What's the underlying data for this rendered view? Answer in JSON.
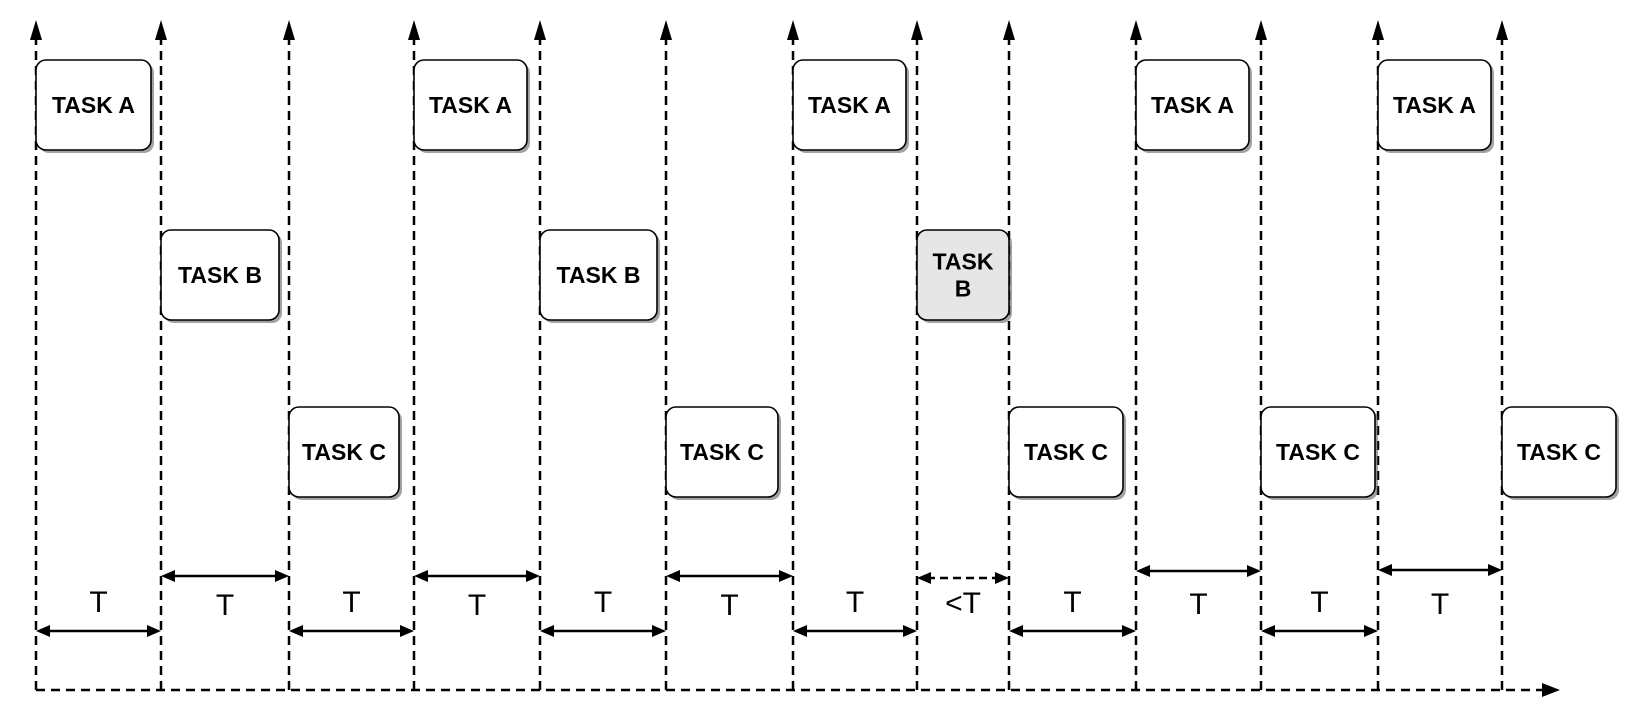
{
  "tasks": [
    {
      "label": "TASK A",
      "row": "A",
      "lines": [
        "TASK A"
      ]
    },
    {
      "label": "TASK B",
      "row": "B",
      "lines": [
        "TASK B"
      ]
    },
    {
      "label": "TASK C",
      "row": "C",
      "lines": [
        "TASK C"
      ]
    },
    {
      "label": "TASK A",
      "row": "A",
      "lines": [
        "TASK A"
      ]
    },
    {
      "label": "TASK B",
      "row": "B",
      "lines": [
        "TASK B"
      ]
    },
    {
      "label": "TASK C",
      "row": "C",
      "lines": [
        "TASK C"
      ]
    },
    {
      "label": "TASK A",
      "row": "A",
      "lines": [
        "TASK A"
      ]
    },
    {
      "label": "TASK B",
      "row": "B",
      "lines": [
        "TASK",
        "B"
      ],
      "highlighted": true
    },
    {
      "label": "TASK C",
      "row": "C",
      "lines": [
        "TASK C"
      ]
    },
    {
      "label": "TASK A",
      "row": "A",
      "lines": [
        "TASK A"
      ]
    },
    {
      "label": "TASK C",
      "row": "C",
      "lines": [
        "TASK C"
      ]
    },
    {
      "label": "TASK A",
      "row": "A",
      "lines": [
        "TASK A"
      ]
    },
    {
      "label": "TASK C",
      "row": "C",
      "lines": [
        "TASK C"
      ]
    }
  ],
  "intervals": [
    {
      "label": "T",
      "arrow_position": "below-label"
    },
    {
      "label": "T",
      "arrow_position": "above-label"
    },
    {
      "label": "T",
      "arrow_position": "below-label"
    },
    {
      "label": "T",
      "arrow_position": "above-label"
    },
    {
      "label": "T",
      "arrow_position": "below-label"
    },
    {
      "label": "T",
      "arrow_position": "above-label"
    },
    {
      "label": "T",
      "arrow_position": "below-label"
    },
    {
      "label": "<T",
      "arrow_position": "above-label",
      "dashed": true
    },
    {
      "label": "T",
      "arrow_position": "below-label"
    },
    {
      "label": "T",
      "arrow_position": "above-label"
    },
    {
      "label": "T",
      "arrow_position": "below-label"
    },
    {
      "label": "T",
      "arrow_position": "above-label"
    }
  ],
  "colors": {
    "line": "#000000",
    "task_fill": "#ffffff",
    "task_highlight_fill": "#e6e6e6",
    "background": "#ffffff"
  }
}
